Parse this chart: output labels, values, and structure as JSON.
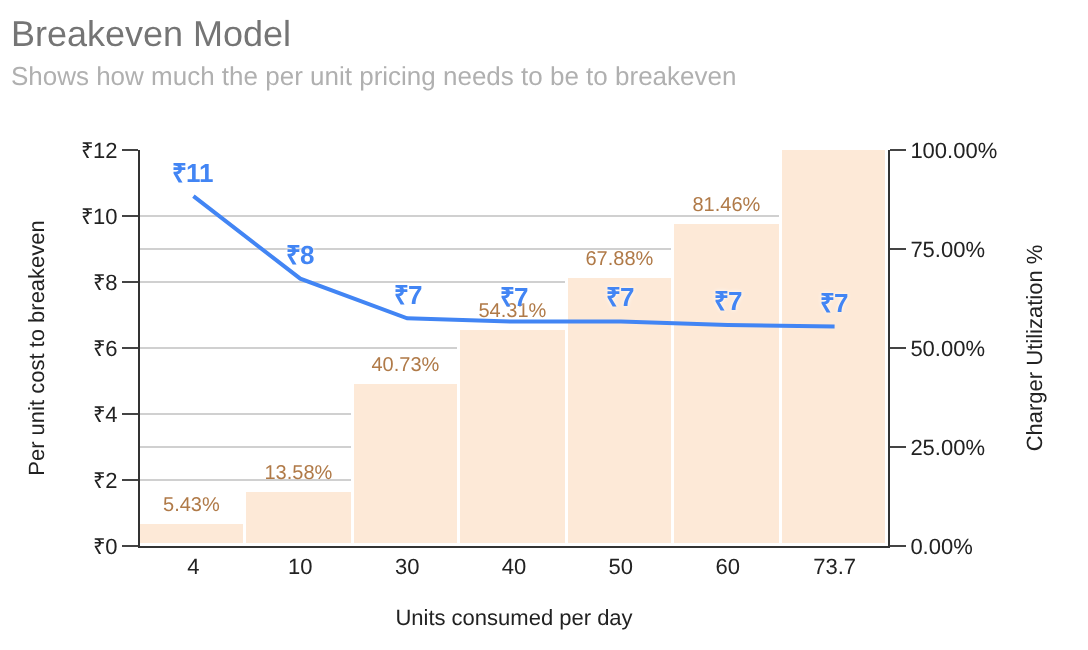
{
  "chart_data": {
    "type": "line",
    "title": "Breakeven Model",
    "subtitle": "Shows how much the per unit pricing needs to be to breakeven",
    "xlabel": "Units consumed per day",
    "ylabel": "Per unit cost to breakeven",
    "y2label": "Charger Utilization %",
    "categories": [
      "4",
      "10",
      "30",
      "40",
      "50",
      "60",
      "73.7"
    ],
    "series": [
      {
        "type": "bar",
        "axis": "y2",
        "color": "#fde9d7",
        "values": [
          5.43,
          13.58,
          40.73,
          54.31,
          67.88,
          81.46,
          100
        ],
        "value_labels": [
          "5.43%",
          "13.58%",
          "40.73%",
          "54.31%",
          "67.88%",
          "81.46%",
          null
        ]
      },
      {
        "color": "#4285f4",
        "values": [
          10.6,
          8.1,
          6.9,
          6.8,
          6.8,
          6.7,
          6.65
        ],
        "value_labels": [
          "₹11",
          "₹8",
          "₹7",
          "₹7",
          "₹7",
          "₹7",
          "₹7"
        ]
      }
    ],
    "ylim": [
      0,
      12
    ],
    "yticks": [
      {
        "value": 0,
        "label": "₹0"
      },
      {
        "value": 2,
        "label": "₹2"
      },
      {
        "value": 4,
        "label": "₹4"
      },
      {
        "value": 6,
        "label": "₹6"
      },
      {
        "value": 8,
        "label": "₹8"
      },
      {
        "value": 10,
        "label": "₹10"
      },
      {
        "value": 12,
        "label": "₹12"
      }
    ],
    "y2lim": [
      0,
      100
    ],
    "y2ticks": [
      {
        "value": 0,
        "label": "0.00%"
      },
      {
        "value": 25,
        "label": "25.00%"
      },
      {
        "value": 50,
        "label": "50.00%"
      },
      {
        "value": 75,
        "label": "75.00%"
      },
      {
        "value": 100,
        "label": "100.00%"
      }
    ],
    "grid": "y",
    "legend": false,
    "marker": "none",
    "line_style": "solid"
  }
}
